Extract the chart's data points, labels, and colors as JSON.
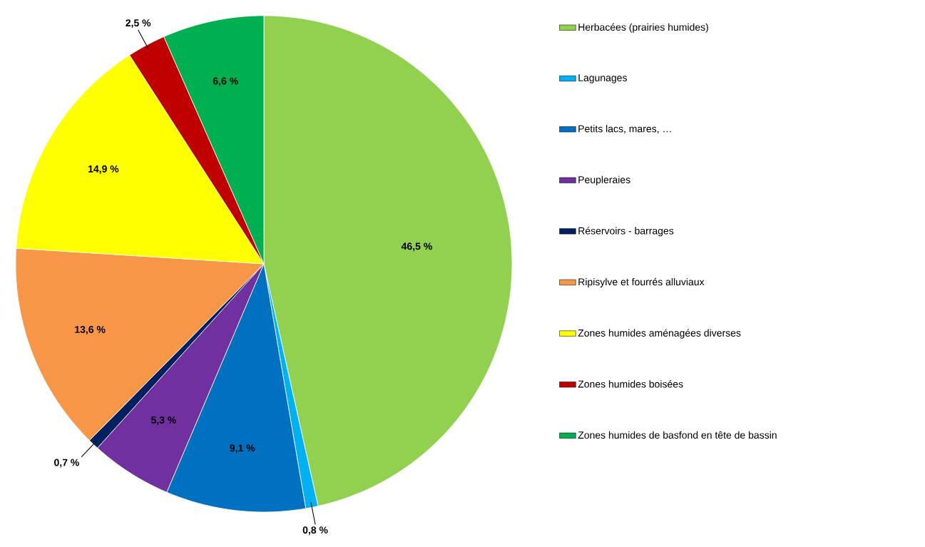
{
  "chart_data": {
    "type": "pie",
    "categories": [
      "Herbacées (prairies humides)",
      "Lagunages",
      "Petits lacs, mares, …",
      "Peupleraies",
      "Réservoirs - barrages",
      "Ripisylve et fourrés alluviaux",
      "Zones humides aménagées diverses",
      "Zones humides boisées",
      "Zones humides de basfond en tête de bassin"
    ],
    "values": [
      46.5,
      0.8,
      9.1,
      5.3,
      0.7,
      13.6,
      14.9,
      2.5,
      6.6
    ],
    "value_labels": [
      "46,5 %",
      "0,8 %",
      "9,1 %",
      "5,3 %",
      "0,7 %",
      "13,6 %",
      "14,9 %",
      "2,5 %",
      "6,6 %"
    ],
    "colors": [
      "#92d050",
      "#00b0f0",
      "#0070c0",
      "#7030a0",
      "#002060",
      "#f79646",
      "#ffff00",
      "#c00000",
      "#00b050"
    ],
    "legend": "right"
  }
}
